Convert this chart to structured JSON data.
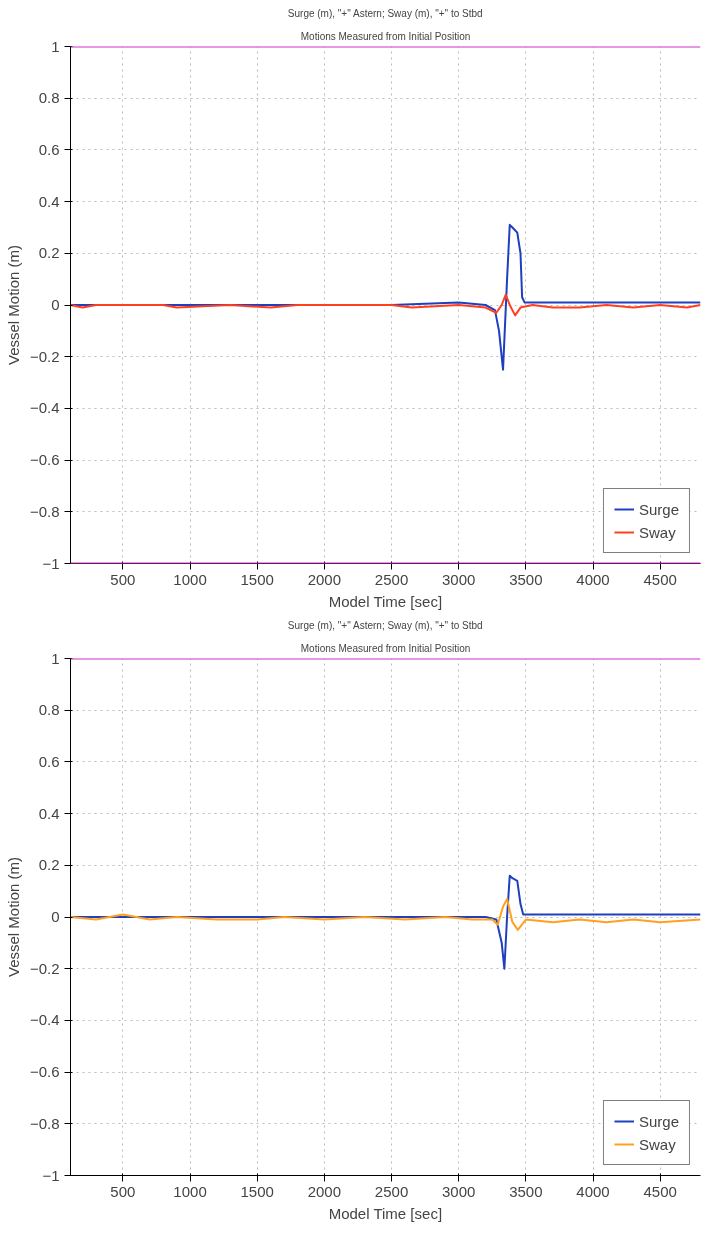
{
  "chart_data": [
    {
      "type": "line",
      "title": "Surge (m), \"+\" Astern; Sway (m), \"+\" to Stbd",
      "subtitle": "Motions Measured from Initial Position",
      "xlabel": "Model Time [sec]",
      "ylabel": "Vessel Motion (m)",
      "xlim": [
        110,
        4800
      ],
      "xticks": [
        500,
        1000,
        1500,
        2000,
        2500,
        3000,
        3500,
        4000,
        4500
      ],
      "ylim": [
        -1,
        1
      ],
      "yticks": [
        -1,
        -0.8,
        -0.6,
        -0.4,
        -0.2,
        0,
        0.2,
        0.4,
        0.6,
        0.8,
        1
      ],
      "grid": true,
      "legend": "bottom right",
      "line_style": "solid",
      "ref_lines": [
        {
          "axis": "y",
          "value": 1,
          "color": "#cc33cc"
        },
        {
          "axis": "y",
          "value": -1,
          "color": "#cc33cc"
        }
      ],
      "series": [
        {
          "name": "Surge",
          "color": "#1f3fbf",
          "x": [
            110,
            500,
            1000,
            1500,
            2000,
            2500,
            3000,
            3200,
            3270,
            3300,
            3330,
            3360,
            3380,
            3400,
            3436,
            3460,
            3472,
            3490,
            3600,
            4000,
            4500,
            4800
          ],
          "values": [
            0,
            0,
            0,
            0,
            0,
            0,
            0.01,
            0,
            -0.02,
            -0.1,
            -0.25,
            0.1,
            0.31,
            0.3,
            0.28,
            0.2,
            0.03,
            0.01,
            0.01,
            0.01,
            0.01,
            0.01
          ]
        },
        {
          "name": "Sway",
          "color": "#ff4020",
          "x": [
            110,
            200,
            300,
            800,
            900,
            1300,
            1600,
            1800,
            2500,
            2650,
            3000,
            3200,
            3280,
            3320,
            3350,
            3380,
            3420,
            3460,
            3550,
            3700,
            3900,
            4100,
            4300,
            4500,
            4700,
            4800
          ],
          "values": [
            0,
            -0.01,
            0,
            0,
            -0.01,
            0,
            -0.01,
            0,
            0,
            -0.01,
            0,
            -0.01,
            -0.03,
            0,
            0.04,
            0,
            -0.04,
            -0.01,
            0,
            -0.01,
            -0.01,
            0,
            -0.01,
            0,
            -0.01,
            0
          ]
        }
      ]
    },
    {
      "type": "line",
      "title": "Surge (m), \"+\" Astern; Sway (m), \"+\" to Stbd",
      "subtitle": "Motions Measured from Initial Position",
      "xlabel": "Model Time [sec]",
      "ylabel": "Vessel Motion (m)",
      "xlim": [
        110,
        4800
      ],
      "xticks": [
        500,
        1000,
        1500,
        2000,
        2500,
        3000,
        3500,
        4000,
        4500
      ],
      "ylim": [
        -1,
        1
      ],
      "yticks": [
        -1,
        -0.8,
        -0.6,
        -0.4,
        -0.2,
        0,
        0.2,
        0.4,
        0.6,
        0.8,
        1
      ],
      "grid": true,
      "legend": "bottom right",
      "line_style": "solid",
      "ref_lines": [
        {
          "axis": "y",
          "value": 1,
          "color": "#cc33cc"
        }
      ],
      "series": [
        {
          "name": "Surge",
          "color": "#1f3fbf",
          "x": [
            110,
            500,
            1000,
            1500,
            2000,
            2500,
            3000,
            3200,
            3280,
            3320,
            3340,
            3360,
            3380,
            3400,
            3436,
            3460,
            3480,
            3600,
            4000,
            4500,
            4800
          ],
          "values": [
            0,
            0,
            0,
            0,
            0,
            0,
            0,
            0,
            -0.01,
            -0.1,
            -0.2,
            0,
            0.16,
            0.15,
            0.14,
            0.05,
            0.01,
            0.01,
            0.01,
            0.01,
            0.01
          ]
        },
        {
          "name": "Sway",
          "color": "#ffa020",
          "x": [
            110,
            300,
            500,
            700,
            900,
            1200,
            1500,
            1700,
            2000,
            2300,
            2600,
            2900,
            3100,
            3250,
            3290,
            3330,
            3360,
            3400,
            3440,
            3500,
            3700,
            3900,
            4100,
            4300,
            4500,
            4800
          ],
          "values": [
            0,
            -0.01,
            0.01,
            -0.01,
            0,
            -0.01,
            -0.01,
            0,
            -0.01,
            0,
            -0.01,
            0,
            -0.01,
            -0.01,
            -0.03,
            0.04,
            0.07,
            -0.02,
            -0.05,
            -0.01,
            -0.02,
            -0.01,
            -0.02,
            -0.01,
            -0.02,
            -0.01
          ]
        }
      ]
    }
  ]
}
